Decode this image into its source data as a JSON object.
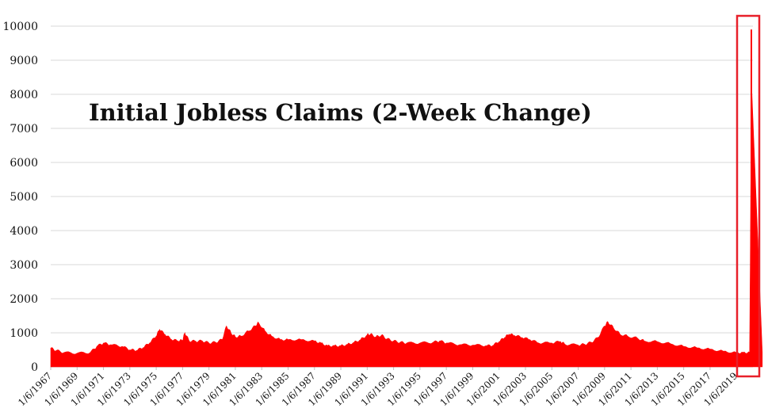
{
  "chart_data": {
    "type": "area",
    "title": "Initial Jobless Claims (2-Week Change)",
    "xlabel": "",
    "ylabel": "",
    "ylim": [
      0,
      10000
    ],
    "yticks": [
      0,
      1000,
      2000,
      3000,
      4000,
      5000,
      6000,
      7000,
      8000,
      9000,
      10000
    ],
    "xticks": [
      "1/6/1967",
      "1/6/1969",
      "1/6/1971",
      "1/6/1973",
      "1/6/1975",
      "1/6/1977",
      "1/6/1979",
      "1/6/1981",
      "1/6/1983",
      "1/6/1985",
      "1/6/1987",
      "1/6/1989",
      "1/6/1991",
      "1/6/1993",
      "1/6/1995",
      "1/6/1997",
      "1/6/1999",
      "1/6/2001",
      "1/6/2003",
      "1/6/2005",
      "1/6/2007",
      "1/6/2009",
      "1/6/2011",
      "1/6/2013",
      "1/6/2015",
      "1/6/2017",
      "1/6/2019"
    ],
    "grid": true,
    "color": "#ff0000",
    "highlight_color": "#e8202a",
    "series": [
      {
        "x": [
          "1967-01",
          "1967-06",
          "1968-01",
          "1969-01",
          "1970-01",
          "1970-07",
          "1971-01",
          "1971-07",
          "1972-06",
          "1973-01",
          "1973-07",
          "1974-01",
          "1974-07",
          "1975-01",
          "1975-04",
          "1975-09",
          "1976-03",
          "1976-09",
          "1977-01",
          "1977-03",
          "1977-07",
          "1978-01",
          "1978-07",
          "1979-01",
          "1979-07",
          "1980-01",
          "1980-05",
          "1980-09",
          "1981-01",
          "1981-06",
          "1982-01",
          "1982-07",
          "1982-10",
          "1983-04",
          "1983-10",
          "1984-06",
          "1985-01",
          "1986-01",
          "1987-01",
          "1987-07",
          "1988-01",
          "1988-07",
          "1989-01",
          "1989-07",
          "1990-01",
          "1990-07",
          "1991-01",
          "1991-04",
          "1991-09",
          "1992-02",
          "1992-07",
          "1993-01",
          "1993-07",
          "1994-01",
          "1995-01",
          "1996-01",
          "1996-07",
          "1997-01",
          "1998-01",
          "1999-01",
          "2000-01",
          "2000-07",
          "2001-01",
          "2001-06",
          "2001-10",
          "2002-03",
          "2002-10",
          "2003-05",
          "2004-01",
          "2005-01",
          "2005-09",
          "2006-01",
          "2007-01",
          "2007-07",
          "2008-01",
          "2008-07",
          "2009-01",
          "2009-04",
          "2009-09",
          "2010-03",
          "2010-10",
          "2011-07",
          "2012-01",
          "2013-01",
          "2014-01",
          "2015-01",
          "2016-01",
          "2017-01",
          "2018-01",
          "2019-01",
          "2019-07",
          "2020-01",
          "2020-03"
        ],
        "y": [
          550,
          480,
          420,
          400,
          420,
          600,
          700,
          650,
          600,
          500,
          480,
          560,
          700,
          900,
          1100,
          950,
          800,
          760,
          780,
          1000,
          760,
          750,
          760,
          700,
          720,
          800,
          1200,
          1000,
          880,
          900,
          1050,
          1200,
          1300,
          1050,
          900,
          800,
          800,
          800,
          760,
          700,
          620,
          620,
          620,
          660,
          720,
          800,
          940,
          960,
          880,
          930,
          820,
          760,
          720,
          700,
          700,
          720,
          760,
          700,
          650,
          640,
          620,
          620,
          740,
          860,
          960,
          920,
          860,
          800,
          700,
          700,
          740,
          660,
          640,
          660,
          720,
          860,
          1200,
          1320,
          1150,
          960,
          900,
          840,
          760,
          740,
          680,
          600,
          560,
          520,
          460,
          420,
          420,
          430,
          9900
        ]
      }
    ]
  }
}
